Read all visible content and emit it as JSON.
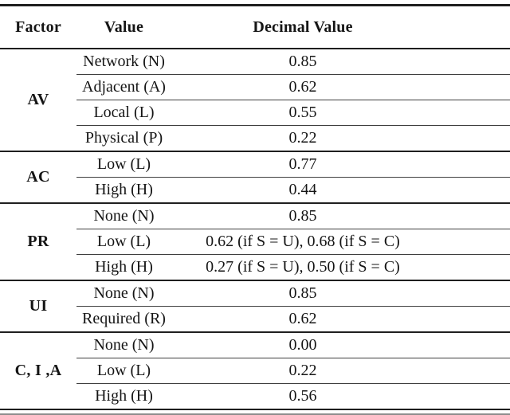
{
  "table": {
    "columns": [
      "Factor",
      "Value",
      "Decimal Value"
    ],
    "groups": [
      {
        "factor": "AV",
        "rows": [
          {
            "value": "Network (N)",
            "decimal": "0.85"
          },
          {
            "value": "Adjacent (A)",
            "decimal": "0.62"
          },
          {
            "value": "Local (L)",
            "decimal": "0.55"
          },
          {
            "value": "Physical (P)",
            "decimal": "0.22"
          }
        ]
      },
      {
        "factor": "AC",
        "rows": [
          {
            "value": "Low (L)",
            "decimal": "0.77"
          },
          {
            "value": "High (H)",
            "decimal": "0.44"
          }
        ]
      },
      {
        "factor": "PR",
        "rows": [
          {
            "value": "None (N)",
            "decimal": "0.85"
          },
          {
            "value": "Low (L)",
            "decimal": "0.62 (if S = U), 0.68 (if S = C)"
          },
          {
            "value": "High (H)",
            "decimal": "0.27 (if S = U), 0.50 (if S = C)"
          }
        ]
      },
      {
        "factor": "UI",
        "rows": [
          {
            "value": "None (N)",
            "decimal": "0.85"
          },
          {
            "value": "Required (R)",
            "decimal": "0.62"
          }
        ]
      },
      {
        "factor": "C, I ,A",
        "rows": [
          {
            "value": "None (N)",
            "decimal": "0.00"
          },
          {
            "value": "Low (L)",
            "decimal": "0.22"
          },
          {
            "value": "High (H)",
            "decimal": "0.56"
          }
        ]
      }
    ]
  },
  "colors": {
    "text": "#151515",
    "rule_heavy": "#1f1f1f",
    "rule_light": "#3f3f3f",
    "background": "#ffffff"
  }
}
